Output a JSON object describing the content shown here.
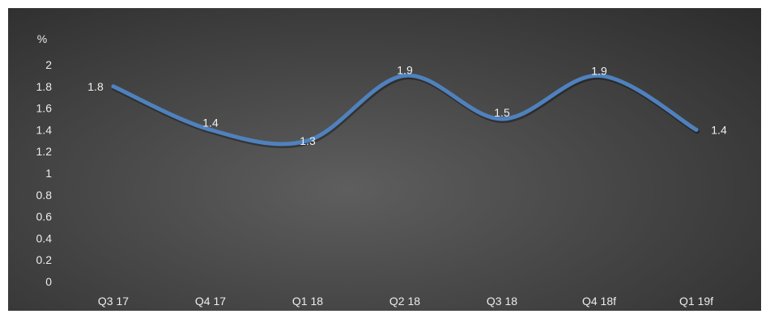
{
  "chart_data": {
    "type": "line",
    "categories": [
      "Q3 17",
      "Q4 17",
      "Q1 18",
      "Q2 18",
      "Q3 18",
      "Q4 18f",
      "Q1 19f"
    ],
    "series": [
      {
        "values": [
          1.8,
          1.4,
          1.3,
          1.9,
          1.5,
          1.9,
          1.4
        ],
        "color": "#4f81bd"
      }
    ],
    "data_labels": [
      "1.8",
      "1.4",
      "1.3",
      "1.9",
      "1.5",
      "1.9",
      "1.4"
    ],
    "y_unit": "%",
    "y_ticks": [
      "0",
      "0.2",
      "0.4",
      "0.6",
      "0.8",
      "1",
      "1.2",
      "1.4",
      "1.6",
      "1.8",
      "2"
    ],
    "ylim": [
      0,
      2
    ],
    "smooth": true,
    "grid": false,
    "legend": "none",
    "background": "#3f3f3f"
  }
}
